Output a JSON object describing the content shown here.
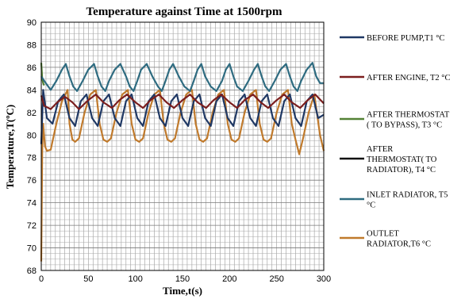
{
  "chart_data": {
    "type": "line",
    "title": "Temperature against Time at 1500rpm",
    "xlabel": "Time,t(s)",
    "ylabel": "Temperature,T(ºC)",
    "xlim": [
      0,
      300
    ],
    "ylim": [
      68,
      90
    ],
    "x_ticks": [
      0,
      50,
      100,
      150,
      200,
      250,
      300
    ],
    "y_ticks": [
      68,
      70,
      72,
      74,
      76,
      78,
      80,
      82,
      84,
      86,
      88,
      90
    ],
    "grid": true,
    "legend_position": "right",
    "series": [
      {
        "name": "BEFORE PUMP,T1 °C",
        "legend_lines": [
          "BEFORE PUMP,T1 °C"
        ],
        "color": "#1f3864",
        "x": [
          0,
          2,
          6,
          12,
          18,
          24,
          30,
          36,
          42,
          48,
          54,
          60,
          66,
          72,
          78,
          84,
          90,
          96,
          102,
          108,
          114,
          120,
          126,
          132,
          138,
          144,
          150,
          156,
          162,
          168,
          174,
          180,
          186,
          192,
          198,
          204,
          210,
          216,
          222,
          228,
          234,
          240,
          246,
          252,
          258,
          264,
          270,
          276,
          282,
          288,
          294,
          300
        ],
        "y": [
          79.2,
          84.0,
          81.5,
          81.0,
          83.0,
          83.6,
          81.5,
          80.8,
          83.0,
          83.6,
          81.5,
          80.8,
          83.0,
          83.6,
          81.5,
          80.8,
          83.0,
          83.6,
          81.5,
          80.8,
          83.0,
          83.6,
          81.5,
          80.8,
          83.0,
          83.6,
          81.5,
          80.8,
          83.0,
          83.6,
          81.5,
          80.8,
          83.0,
          83.6,
          81.5,
          80.8,
          83.0,
          83.6,
          81.5,
          80.8,
          83.0,
          83.6,
          81.5,
          80.8,
          83.0,
          83.6,
          81.5,
          80.8,
          83.0,
          83.6,
          81.5,
          81.8
        ]
      },
      {
        "name": "AFTER ENGINE, T2 °C",
        "legend_lines": [
          "AFTER ENGINE, T2 °C"
        ],
        "color": "#7b1e1e",
        "x": [
          0,
          3,
          10,
          17,
          25,
          33,
          40,
          50,
          58,
          66,
          75,
          83,
          91,
          100,
          108,
          116,
          125,
          133,
          141,
          150,
          158,
          166,
          175,
          183,
          191,
          200,
          208,
          216,
          225,
          233,
          241,
          250,
          258,
          266,
          275,
          283,
          291,
          300
        ],
        "y": [
          83.5,
          82.6,
          82.3,
          82.9,
          83.4,
          82.9,
          82.3,
          83.1,
          83.6,
          82.9,
          82.4,
          83.1,
          83.6,
          82.9,
          82.4,
          83.1,
          83.6,
          82.9,
          82.4,
          83.1,
          83.6,
          82.9,
          82.4,
          83.1,
          83.6,
          82.9,
          82.4,
          83.1,
          83.6,
          82.9,
          82.4,
          83.1,
          83.6,
          82.9,
          82.4,
          83.1,
          83.6,
          82.8
        ]
      },
      {
        "name": "AFTER THERMOSTAT ( TO BYPASS), T3 °C",
        "legend_lines": [
          "AFTER THERMOSTAT",
          "( TO BYPASS), T3 °C"
        ],
        "color": "#548235",
        "x": [
          0,
          1,
          2,
          3
        ],
        "y": [
          86.4,
          85.0,
          84.6,
          84.4
        ]
      },
      {
        "name": "AFTER THERMOSTAT( TO RADIATOR), T4 °C",
        "legend_lines": [
          "AFTER",
          "THERMOSTAT( TO",
          "RADIATOR), T4 °C"
        ],
        "color": "#111111",
        "x": [],
        "y": []
      },
      {
        "name": "INLET RADIATOR, T5 °C",
        "legend_lines": [
          "INLET RADIATOR, T5",
          "°C"
        ],
        "color": "#2e6b80",
        "x": [
          0,
          4,
          10,
          16,
          22,
          26,
          30,
          34,
          38,
          44,
          50,
          56,
          60,
          64,
          68,
          72,
          78,
          84,
          90,
          94,
          98,
          102,
          106,
          112,
          118,
          124,
          128,
          132,
          136,
          140,
          146,
          152,
          158,
          162,
          166,
          170,
          174,
          180,
          186,
          192,
          196,
          200,
          204,
          208,
          214,
          220,
          226,
          230,
          234,
          238,
          242,
          248,
          254,
          260,
          264,
          268,
          272,
          276,
          282,
          288,
          292,
          296,
          300
        ],
        "y": [
          85.2,
          84.7,
          84.0,
          84.8,
          85.8,
          86.3,
          85.2,
          84.3,
          83.9,
          84.8,
          85.8,
          86.3,
          85.2,
          84.3,
          83.9,
          84.8,
          85.8,
          86.3,
          85.2,
          84.3,
          83.9,
          84.8,
          85.8,
          86.3,
          85.2,
          84.3,
          83.9,
          84.8,
          85.8,
          86.3,
          85.2,
          84.3,
          83.9,
          84.8,
          85.8,
          86.3,
          85.2,
          84.3,
          83.9,
          84.8,
          85.8,
          86.3,
          85.2,
          84.3,
          83.9,
          84.8,
          85.8,
          86.3,
          85.2,
          84.3,
          83.9,
          84.8,
          85.8,
          86.3,
          85.2,
          84.3,
          83.9,
          84.8,
          85.8,
          86.4,
          85.2,
          84.6,
          84.6
        ]
      },
      {
        "name": "OUTLET RADIATOR,T6 °C",
        "legend_lines": [
          "OUTLET",
          "RADIATOR,T6 °C"
        ],
        "color": "#c07a2c",
        "x": [
          0,
          1,
          2,
          4,
          6,
          10,
          16,
          22,
          28,
          30,
          33,
          36,
          40,
          46,
          52,
          58,
          62,
          66,
          70,
          74,
          80,
          86,
          92,
          96,
          100,
          104,
          108,
          114,
          120,
          126,
          130,
          134,
          138,
          142,
          148,
          154,
          160,
          164,
          168,
          172,
          176,
          182,
          188,
          194,
          198,
          202,
          206,
          210,
          216,
          222,
          228,
          232,
          236,
          240,
          244,
          250,
          256,
          262,
          266,
          270,
          274,
          278,
          284,
          290,
          296,
          300
        ],
        "y": [
          68.8,
          78.5,
          81.0,
          79.0,
          78.6,
          78.7,
          81.0,
          83.0,
          84.0,
          81.0,
          79.6,
          79.4,
          79.7,
          82.0,
          83.6,
          84.0,
          81.0,
          79.6,
          79.4,
          79.7,
          82.0,
          83.6,
          84.0,
          81.0,
          79.6,
          79.4,
          79.7,
          82.0,
          83.6,
          84.0,
          81.0,
          79.6,
          79.4,
          79.7,
          82.0,
          83.6,
          84.0,
          81.0,
          79.6,
          79.4,
          79.7,
          82.0,
          83.6,
          84.0,
          81.0,
          79.6,
          79.4,
          79.7,
          82.0,
          83.6,
          84.0,
          81.0,
          79.6,
          79.4,
          79.7,
          82.0,
          83.6,
          84.0,
          81.0,
          79.6,
          78.3,
          79.7,
          82.0,
          83.6,
          80.0,
          78.6
        ]
      }
    ]
  }
}
